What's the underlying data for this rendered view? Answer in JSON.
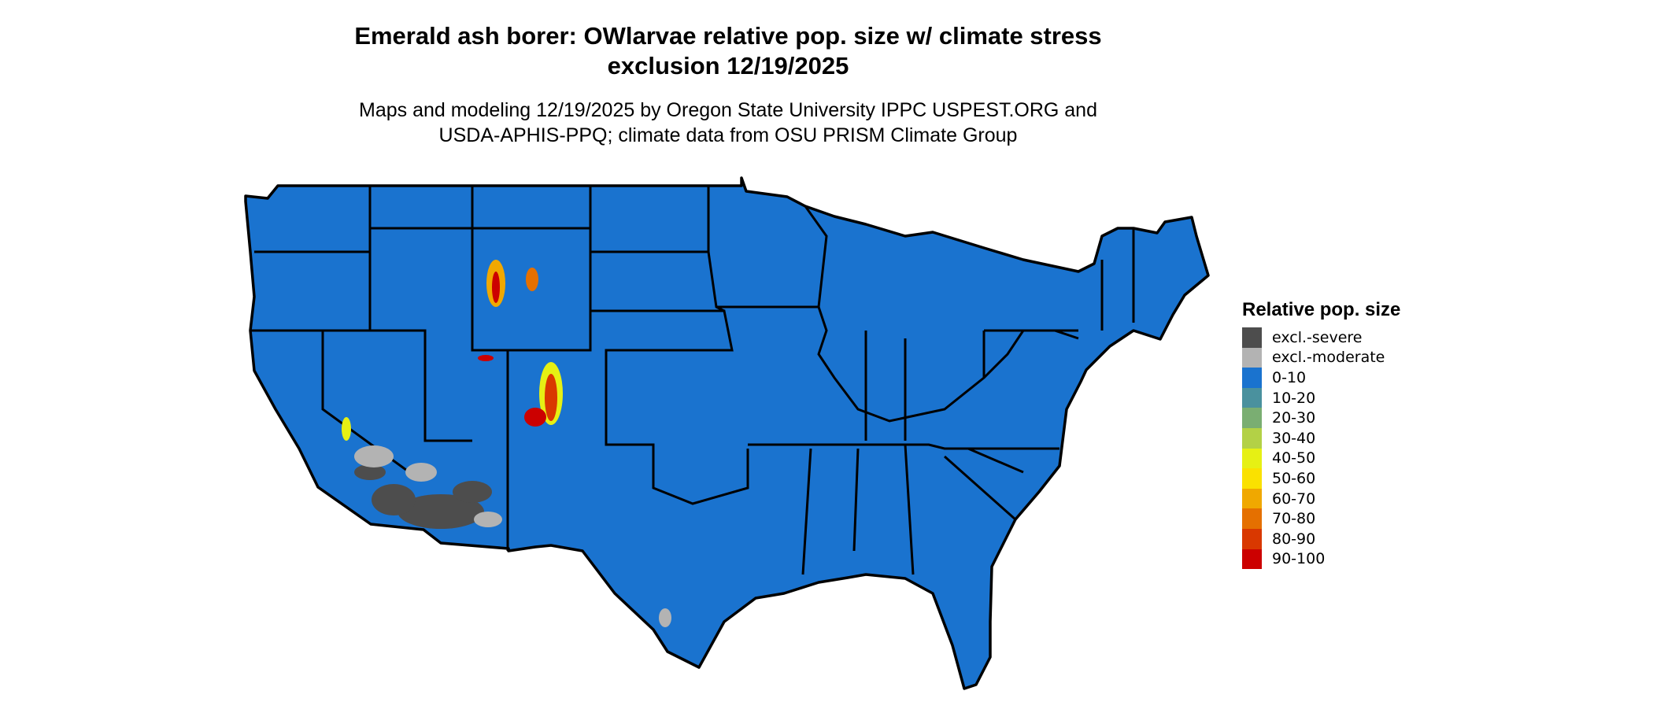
{
  "title_line1": "Emerald ash borer: OWlarvae relative pop. size w/ climate stress",
  "title_line2": "exclusion 12/19/2025",
  "subtitle_line1": "Maps and modeling 12/19/2025 by Oregon State University IPPC USPEST.ORG and",
  "subtitle_line2": "USDA-APHIS-PPQ; climate data from OSU PRISM Climate Group",
  "legend": {
    "title": "Relative pop. size",
    "items": [
      {
        "label": "excl.-severe",
        "color": "#4d4d4d"
      },
      {
        "label": "excl.-moderate",
        "color": "#b3b3b3"
      },
      {
        "label": "0-10",
        "color": "#1a73cf"
      },
      {
        "label": "10-20",
        "color": "#4a919e"
      },
      {
        "label": "20-30",
        "color": "#7aae72"
      },
      {
        "label": "30-40",
        "color": "#b3d146"
      },
      {
        "label": "40-50",
        "color": "#e6f014"
      },
      {
        "label": "50-60",
        "color": "#fae100"
      },
      {
        "label": "60-70",
        "color": "#f0a800"
      },
      {
        "label": "70-80",
        "color": "#e57000"
      },
      {
        "label": "80-90",
        "color": "#d93800"
      },
      {
        "label": "90-100",
        "color": "#cc0000"
      }
    ]
  }
}
